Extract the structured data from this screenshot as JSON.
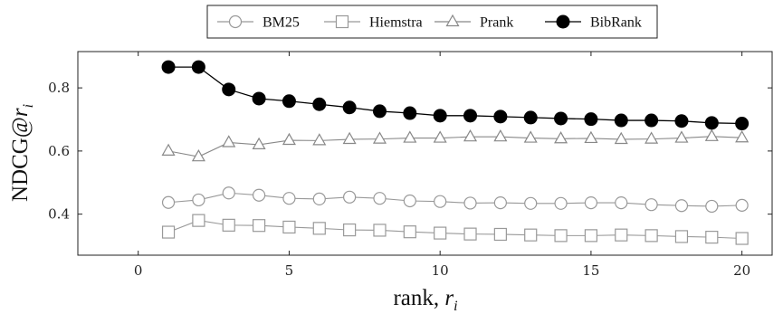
{
  "chart_data": {
    "type": "line",
    "xlabel": "rank, r_i",
    "ylabel": "NDCG@r_i",
    "xlim": [
      -2,
      21
    ],
    "ylim": [
      0.27,
      0.915
    ],
    "xticks": [
      0,
      5,
      10,
      15,
      20
    ],
    "yticks": [
      0.4,
      0.6,
      0.8
    ],
    "x": [
      1,
      2,
      3,
      4,
      5,
      6,
      7,
      8,
      9,
      10,
      11,
      12,
      13,
      14,
      15,
      16,
      17,
      18,
      19,
      20
    ],
    "legend_position": "top-center",
    "grid": false,
    "series": [
      {
        "name": "BM25",
        "marker": "circle-open",
        "color": "#999999",
        "values": [
          0.437,
          0.445,
          0.467,
          0.46,
          0.45,
          0.448,
          0.454,
          0.45,
          0.442,
          0.44,
          0.435,
          0.436,
          0.434,
          0.434,
          0.436,
          0.436,
          0.43,
          0.427,
          0.425,
          0.428
        ]
      },
      {
        "name": "Hiemstra",
        "marker": "square-open",
        "color": "#999999",
        "values": [
          0.343,
          0.38,
          0.365,
          0.364,
          0.359,
          0.355,
          0.35,
          0.349,
          0.344,
          0.34,
          0.337,
          0.336,
          0.334,
          0.332,
          0.332,
          0.334,
          0.332,
          0.329,
          0.327,
          0.323
        ]
      },
      {
        "name": "Prank",
        "marker": "triangle-open",
        "color": "#888888",
        "values": [
          0.6,
          0.582,
          0.627,
          0.62,
          0.634,
          0.633,
          0.637,
          0.638,
          0.641,
          0.641,
          0.645,
          0.645,
          0.641,
          0.639,
          0.64,
          0.637,
          0.638,
          0.641,
          0.646,
          0.642
        ]
      },
      {
        "name": "BibRank",
        "marker": "circle-filled",
        "color": "#000000",
        "values": [
          0.866,
          0.866,
          0.795,
          0.766,
          0.758,
          0.748,
          0.738,
          0.726,
          0.72,
          0.712,
          0.712,
          0.709,
          0.706,
          0.703,
          0.701,
          0.697,
          0.697,
          0.695,
          0.689,
          0.687
        ]
      }
    ]
  }
}
